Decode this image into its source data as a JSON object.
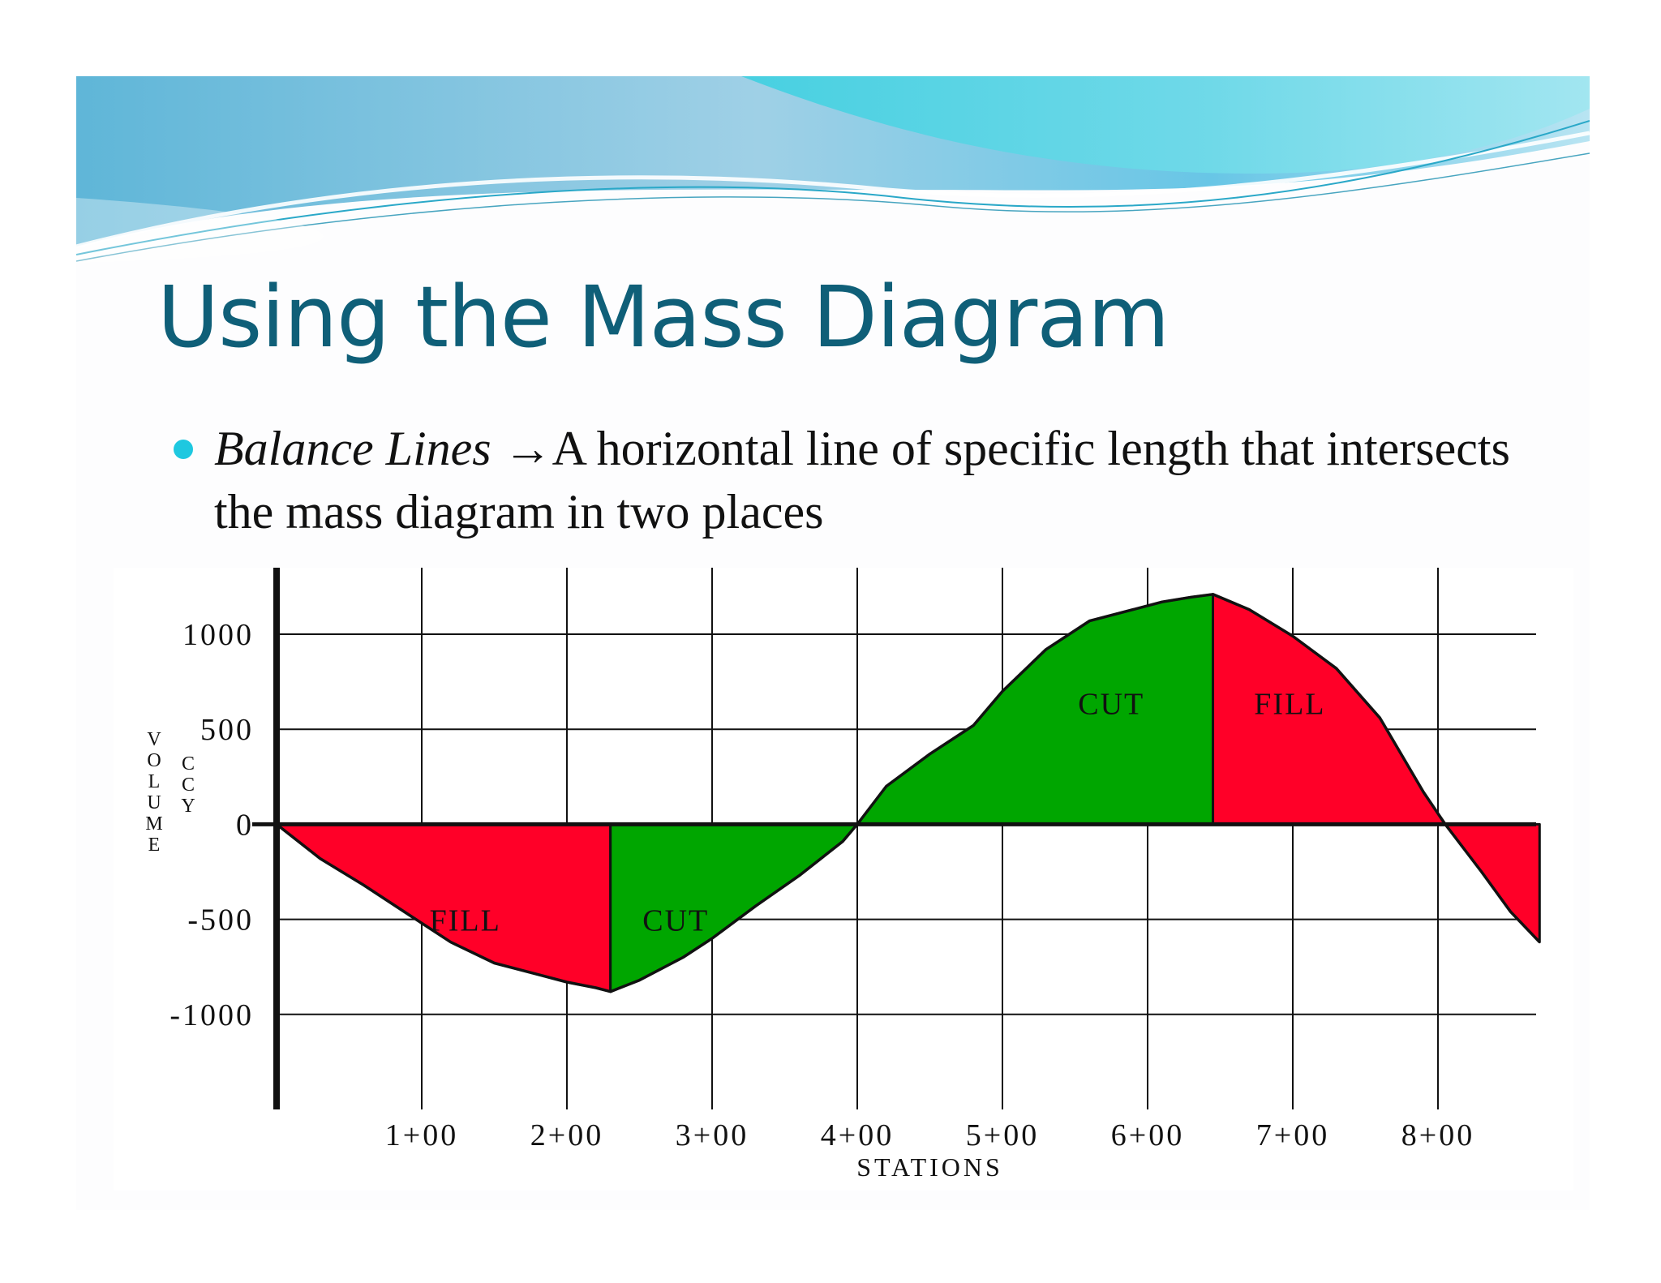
{
  "slide": {
    "title": "Using the Mass Diagram",
    "bullet": {
      "term": "Balance Lines",
      "arrow": "→",
      "definition": "A horizontal line of specific length that intersects the mass diagram in two places"
    },
    "colors": {
      "title": "#0f5f78",
      "bullet_dot": "#1ec8e0",
      "fill_region": "#ff0028",
      "cut_region": "#00a600"
    }
  },
  "chart_data": {
    "type": "area",
    "title": "",
    "xlabel": "STATIONS",
    "ylabel": "VOLUME",
    "ylabel_unit": "CCY",
    "x_tick_labels": [
      "1+00",
      "2+00",
      "3+00",
      "4+00",
      "5+00",
      "6+00",
      "7+00",
      "8+00"
    ],
    "y_tick_labels": [
      "1000",
      "500",
      "0",
      "-500",
      "-1000"
    ],
    "xlim": [
      0,
      8.7
    ],
    "ylim": [
      -1500,
      1350
    ],
    "grid": true,
    "x": [
      0,
      0.3,
      0.6,
      0.9,
      1.2,
      1.5,
      1.8,
      2.0,
      2.2,
      2.3,
      2.5,
      2.8,
      3.0,
      3.3,
      3.6,
      3.9,
      4.0,
      4.2,
      4.5,
      4.8,
      5.0,
      5.3,
      5.6,
      5.9,
      6.1,
      6.3,
      6.45,
      6.7,
      7.0,
      7.3,
      7.6,
      7.9,
      8.05,
      8.3,
      8.5,
      8.7
    ],
    "y": [
      0,
      -180,
      -320,
      -470,
      -620,
      -730,
      -790,
      -830,
      -860,
      -880,
      -820,
      -700,
      -600,
      -430,
      -270,
      -90,
      0,
      200,
      370,
      520,
      700,
      920,
      1070,
      1130,
      1170,
      1195,
      1210,
      1130,
      990,
      820,
      560,
      170,
      0,
      -250,
      -460,
      -620
    ],
    "regions": [
      {
        "label": "FILL",
        "x": [
          0.0,
          2.3
        ],
        "fill": "red"
      },
      {
        "label": "CUT",
        "x": [
          2.3,
          4.0
        ],
        "fill": "green"
      },
      {
        "label": "CUT",
        "x": [
          4.0,
          6.45
        ],
        "fill": "green"
      },
      {
        "label": "FILL",
        "x": [
          6.45,
          8.05
        ],
        "fill": "red"
      },
      {
        "label": "",
        "x": [
          8.05,
          8.7
        ],
        "fill": "red"
      }
    ],
    "region_labels": [
      {
        "text": "FILL",
        "x": 1.3,
        "y": -560
      },
      {
        "text": "CUT",
        "x": 2.75,
        "y": -560
      },
      {
        "text": "CUT",
        "x": 5.75,
        "y": 580
      },
      {
        "text": "FILL",
        "x": 6.98,
        "y": 580
      }
    ],
    "balance_line_y": 0
  }
}
